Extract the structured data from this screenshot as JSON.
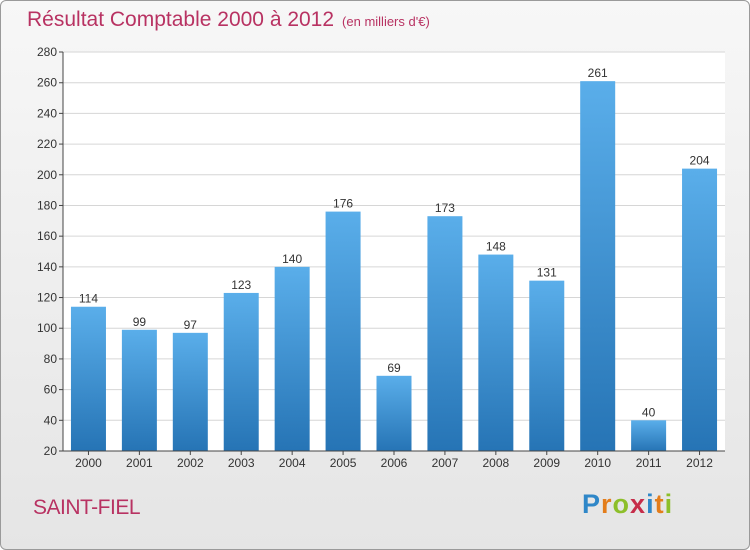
{
  "header": {
    "title": "Résultat Comptable 2000 à 2012",
    "subtitle": "(en milliers d'€)"
  },
  "footer": {
    "commune": "SAINT-FIEL",
    "logo_letters": [
      "P",
      "r",
      "o",
      "x",
      "i",
      "t",
      "i"
    ],
    "logo_colors": [
      "#2f87c8",
      "#e37d1b",
      "#8dbf2a",
      "#c62d4a",
      "#2f87c8",
      "#e37d1b",
      "#8dbf2a"
    ]
  },
  "chart_data": {
    "type": "bar",
    "title": "Résultat Comptable 2000 à 2012",
    "subtitle": "(en milliers d'€)",
    "categories": [
      "2000",
      "2001",
      "2002",
      "2003",
      "2004",
      "2005",
      "2006",
      "2007",
      "2008",
      "2009",
      "2010",
      "2011",
      "2012"
    ],
    "values": [
      114,
      99,
      97,
      123,
      140,
      176,
      69,
      173,
      148,
      131,
      261,
      40,
      204
    ],
    "ylim": [
      20,
      280
    ],
    "yticks": [
      20,
      40,
      60,
      80,
      100,
      120,
      140,
      160,
      180,
      200,
      220,
      240,
      260,
      280
    ],
    "grid": true,
    "colors": {
      "bar_light": "#5aaeea",
      "bar_dark": "#2674b5",
      "grid": "#d6d6d6",
      "axis": "#444444"
    }
  }
}
